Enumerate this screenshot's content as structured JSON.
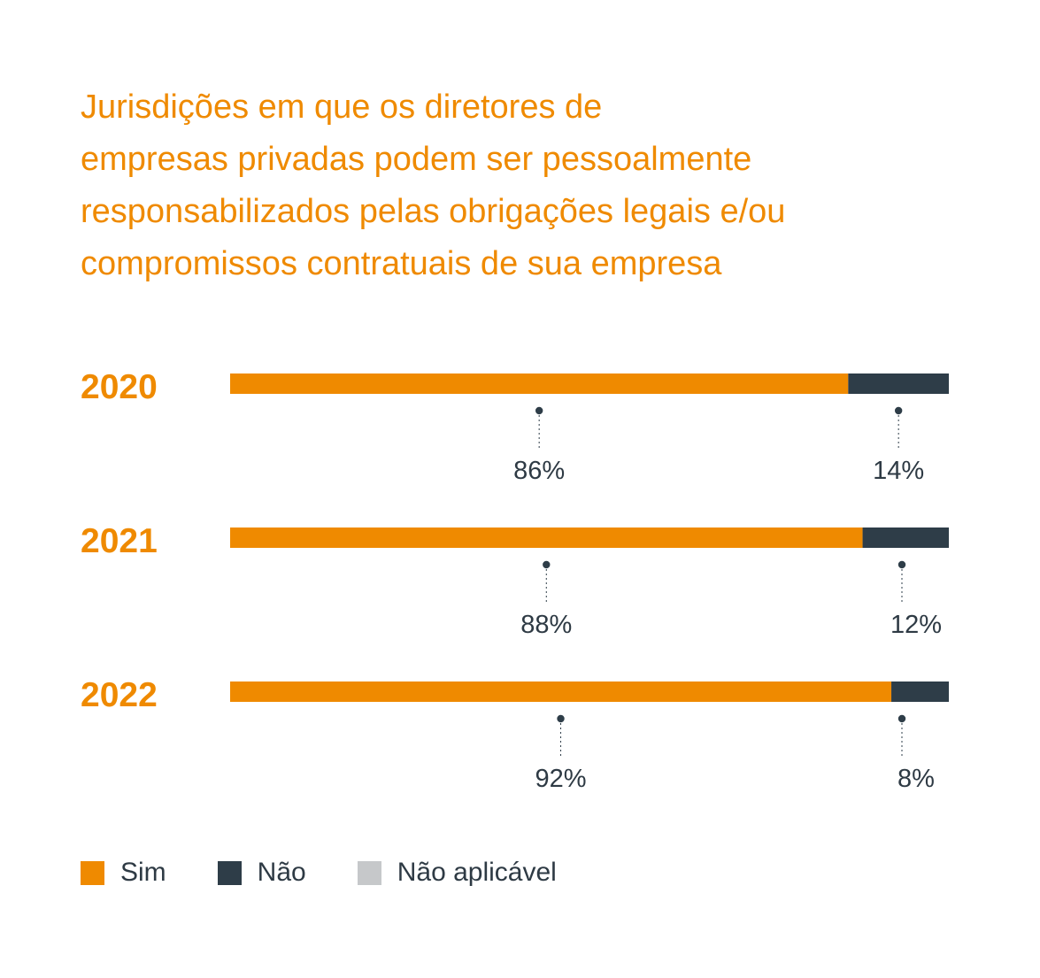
{
  "colors": {
    "sim": "#ef8a00",
    "nao": "#2e3d48",
    "nao_aplicavel": "#c6c8ca",
    "text": "#2e3a44"
  },
  "chart_data": {
    "type": "bar",
    "orientation": "horizontal",
    "stacked": true,
    "title": "Jurisdições em que os diretores de empresas privadas podem ser pessoalmente responsabilizados pelas obrigações legais e/ou compromissos contratuais de sua empresa",
    "title_lines": [
      "Jurisdições em que os diretores de",
      "empresas privadas podem ser pessoalmente",
      "responsabilizados pelas obrigações legais e/ou",
      "compromissos contratuais de sua empresa"
    ],
    "categories": [
      "2020",
      "2021",
      "2022"
    ],
    "series": [
      {
        "name": "Sim",
        "values": [
          86,
          88,
          92
        ],
        "labels": [
          "86%",
          "88%",
          "92%"
        ]
      },
      {
        "name": "Não",
        "values": [
          14,
          12,
          8
        ],
        "labels": [
          "14%",
          "12%",
          "8%"
        ]
      },
      {
        "name": "Não aplicável",
        "values": [
          0,
          0,
          0
        ],
        "labels": [
          "",
          "",
          ""
        ]
      }
    ],
    "xlim": [
      0,
      100
    ],
    "unit": "%",
    "grid": false,
    "legend": "bottom-left"
  }
}
